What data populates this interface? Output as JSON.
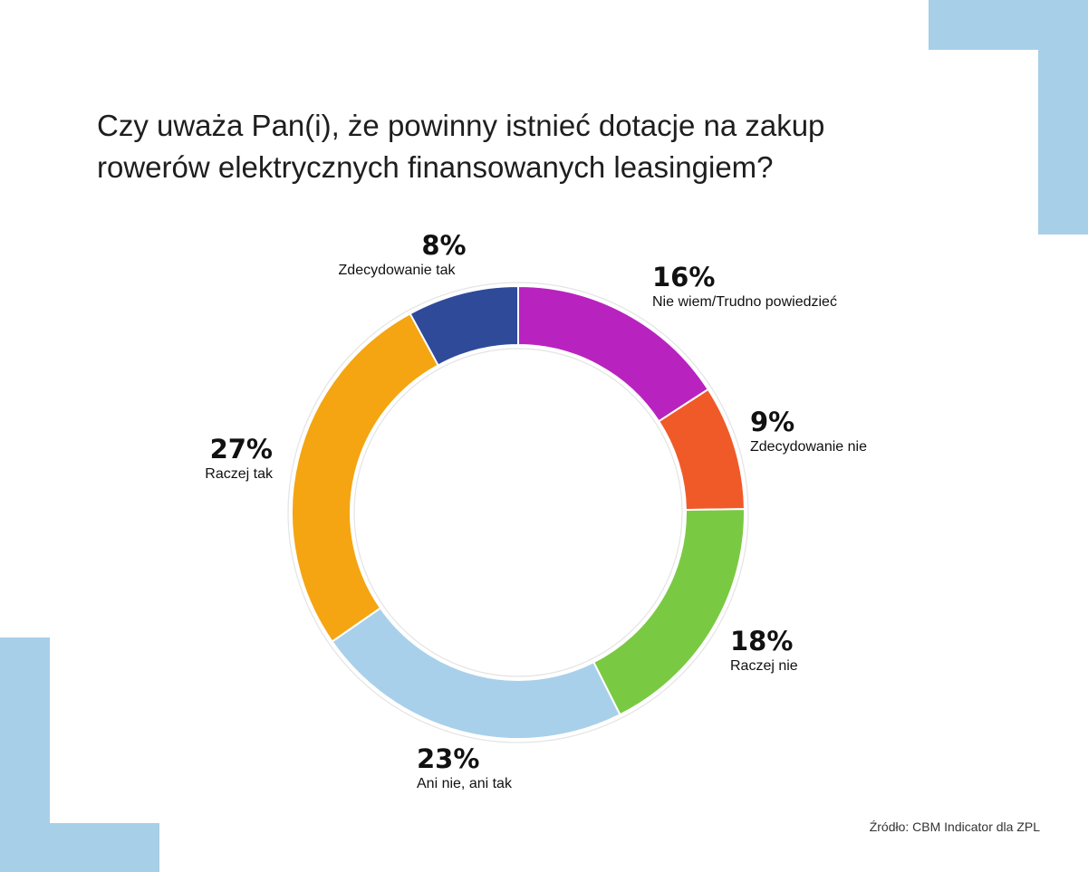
{
  "title_lines": [
    "Czy uważa Pan(i), że powinny istnieć dotacje na zakup",
    "rowerów elektrycznych finansowanych leasingiem?"
  ],
  "source": "Źródło: CBM Indicator dla ZPL",
  "colors": {
    "decor": "#a8cfe8",
    "background": "#ffffff"
  },
  "chart_data": {
    "type": "pie",
    "variant": "donut",
    "title": "Czy uważa Pan(i), że powinny istnieć dotacje na zakup rowerów elektrycznych finansowanych leasingiem?",
    "slices": [
      {
        "label": "Nie wiem/Trudno powiedzieć",
        "value": 16,
        "display": "16%",
        "color": "#b823bf"
      },
      {
        "label": "Zdecydowanie nie",
        "value": 9,
        "display": "9%",
        "color": "#f05a28"
      },
      {
        "label": "Raczej nie",
        "value": 18,
        "display": "18%",
        "color": "#7ac943"
      },
      {
        "label": "Ani nie, ani tak",
        "value": 23,
        "display": "23%",
        "color": "#a8d0ea"
      },
      {
        "label": "Raczej tak",
        "value": 27,
        "display": "27%",
        "color": "#f4a511"
      },
      {
        "label": "Zdecydowanie tak",
        "value": 8,
        "display": "8%",
        "color": "#2f4a99"
      }
    ],
    "start": "top",
    "direction": "clockwise",
    "legend": "none",
    "data_labels": "outside"
  }
}
